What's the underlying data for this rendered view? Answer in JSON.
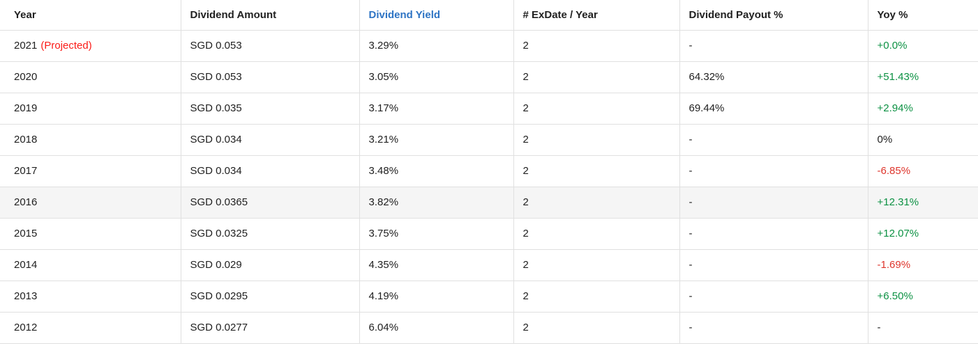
{
  "colors": {
    "header_text": "#212121",
    "body_text": "#212121",
    "accent_blue": "#2e74c4",
    "positive_green": "#0c9143",
    "negative_red": "#de352c",
    "projected_red": "#fb1b17",
    "row_highlight_bg": "#f5f5f5",
    "border": "#e0e0e0",
    "background": "#ffffff"
  },
  "table": {
    "columns": [
      {
        "key": "year",
        "label": "Year",
        "accent": false
      },
      {
        "key": "dividend_amount",
        "label": "Dividend Amount",
        "accent": false
      },
      {
        "key": "dividend_yield",
        "label": "Dividend Yield",
        "accent": true
      },
      {
        "key": "exdate_per_year",
        "label": "# ExDate / Year",
        "accent": false
      },
      {
        "key": "dividend_payout_pct",
        "label": "Dividend Payout %",
        "accent": false
      },
      {
        "key": "yoy_pct",
        "label": "Yoy %",
        "accent": false
      }
    ],
    "rows": [
      {
        "year": "2021",
        "year_note": "(Projected)",
        "dividend_amount": "SGD 0.053",
        "dividend_yield": "3.29%",
        "exdate_per_year": "2",
        "dividend_payout_pct": "-",
        "yoy_pct": "+0.0%",
        "yoy_trend": "positive",
        "highlighted": false
      },
      {
        "year": "2020",
        "year_note": "",
        "dividend_amount": "SGD 0.053",
        "dividend_yield": "3.05%",
        "exdate_per_year": "2",
        "dividend_payout_pct": "64.32%",
        "yoy_pct": "+51.43%",
        "yoy_trend": "positive",
        "highlighted": false
      },
      {
        "year": "2019",
        "year_note": "",
        "dividend_amount": "SGD 0.035",
        "dividend_yield": "3.17%",
        "exdate_per_year": "2",
        "dividend_payout_pct": "69.44%",
        "yoy_pct": "+2.94%",
        "yoy_trend": "positive",
        "highlighted": false
      },
      {
        "year": "2018",
        "year_note": "",
        "dividend_amount": "SGD 0.034",
        "dividend_yield": "3.21%",
        "exdate_per_year": "2",
        "dividend_payout_pct": "-",
        "yoy_pct": "0%",
        "yoy_trend": "neutral",
        "highlighted": false
      },
      {
        "year": "2017",
        "year_note": "",
        "dividend_amount": "SGD 0.034",
        "dividend_yield": "3.48%",
        "exdate_per_year": "2",
        "dividend_payout_pct": "-",
        "yoy_pct": "-6.85%",
        "yoy_trend": "negative",
        "highlighted": false
      },
      {
        "year": "2016",
        "year_note": "",
        "dividend_amount": "SGD 0.0365",
        "dividend_yield": "3.82%",
        "exdate_per_year": "2",
        "dividend_payout_pct": "-",
        "yoy_pct": "+12.31%",
        "yoy_trend": "positive",
        "highlighted": true
      },
      {
        "year": "2015",
        "year_note": "",
        "dividend_amount": "SGD 0.0325",
        "dividend_yield": "3.75%",
        "exdate_per_year": "2",
        "dividend_payout_pct": "-",
        "yoy_pct": "+12.07%",
        "yoy_trend": "positive",
        "highlighted": false
      },
      {
        "year": "2014",
        "year_note": "",
        "dividend_amount": "SGD 0.029",
        "dividend_yield": "4.35%",
        "exdate_per_year": "2",
        "dividend_payout_pct": "-",
        "yoy_pct": "-1.69%",
        "yoy_trend": "negative",
        "highlighted": false
      },
      {
        "year": "2013",
        "year_note": "",
        "dividend_amount": "SGD 0.0295",
        "dividend_yield": "4.19%",
        "exdate_per_year": "2",
        "dividend_payout_pct": "-",
        "yoy_pct": "+6.50%",
        "yoy_trend": "positive",
        "highlighted": false
      },
      {
        "year": "2012",
        "year_note": "",
        "dividend_amount": "SGD 0.0277",
        "dividend_yield": "6.04%",
        "exdate_per_year": "2",
        "dividend_payout_pct": "-",
        "yoy_pct": "-",
        "yoy_trend": "neutral",
        "highlighted": false
      }
    ]
  }
}
